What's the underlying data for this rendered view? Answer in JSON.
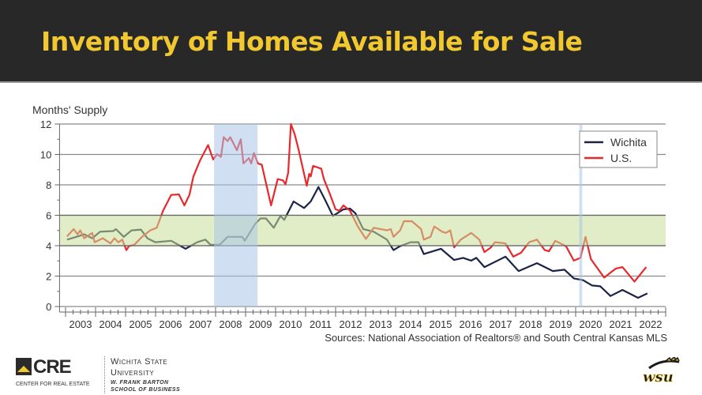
{
  "slide": {
    "title": "Inventory of Homes Available for Sale"
  },
  "chart_data": {
    "type": "line",
    "title": "",
    "ylabel": "Months' Supply",
    "xlabel": "",
    "ylim": [
      0,
      12
    ],
    "xlim": [
      2002.8,
      2023.0
    ],
    "yticks": [
      "0",
      "2",
      "4",
      "6",
      "8",
      "10",
      "12"
    ],
    "xticks": [
      "2003",
      "2004",
      "2005",
      "2006",
      "2007",
      "2008",
      "2009",
      "2010",
      "2011",
      "2012",
      "2013",
      "2014",
      "2015",
      "2016",
      "2017",
      "2018",
      "2019",
      "2020",
      "2021",
      "2022"
    ],
    "grid": "horizontal",
    "legend_position": "top-right",
    "source": "Sources: National Association of Realtors® and South Central Kansas MLS",
    "shaded_band": {
      "from": 4,
      "to": 6,
      "color": "#c6df98"
    },
    "shaded_periods": [
      {
        "from": 2007.95,
        "to": 2009.4,
        "color": "#a9c4e6"
      },
      {
        "from": 2020.12,
        "to": 2020.22,
        "color": "#a9c4e6"
      }
    ],
    "series": [
      {
        "name": "Wichita",
        "color": "#1b2447",
        "points": [
          [
            2003.05,
            4.4
          ],
          [
            2003.36,
            4.58
          ],
          [
            2003.62,
            4.75
          ],
          [
            2003.89,
            4.49
          ],
          [
            2004.15,
            4.92
          ],
          [
            2004.59,
            4.96
          ],
          [
            2004.68,
            5.09
          ],
          [
            2004.94,
            4.58
          ],
          [
            2005.2,
            5.01
          ],
          [
            2005.51,
            5.06
          ],
          [
            2005.73,
            4.49
          ],
          [
            2005.99,
            4.23
          ],
          [
            2006.52,
            4.32
          ],
          [
            2007.0,
            3.8
          ],
          [
            2007.39,
            4.23
          ],
          [
            2007.66,
            4.4
          ],
          [
            2007.83,
            4.06
          ],
          [
            2008.14,
            4.06
          ],
          [
            2008.4,
            4.58
          ],
          [
            2008.89,
            4.58
          ],
          [
            2008.97,
            4.32
          ],
          [
            2009.32,
            5.44
          ],
          [
            2009.5,
            5.79
          ],
          [
            2009.68,
            5.79
          ],
          [
            2009.94,
            5.18
          ],
          [
            2010.16,
            5.96
          ],
          [
            2010.29,
            5.7
          ],
          [
            2010.6,
            6.91
          ],
          [
            2010.95,
            6.48
          ],
          [
            2011.17,
            6.91
          ],
          [
            2011.43,
            7.86
          ],
          [
            2011.61,
            7.17
          ],
          [
            2011.91,
            5.96
          ],
          [
            2012.26,
            6.39
          ],
          [
            2012.48,
            6.44
          ],
          [
            2012.66,
            6.13
          ],
          [
            2012.92,
            5.09
          ],
          [
            2013.27,
            4.92
          ],
          [
            2013.71,
            4.4
          ],
          [
            2013.93,
            3.71
          ],
          [
            2014.15,
            3.97
          ],
          [
            2014.5,
            4.23
          ],
          [
            2014.76,
            4.23
          ],
          [
            2014.94,
            3.45
          ],
          [
            2015.51,
            3.8
          ],
          [
            2015.95,
            3.06
          ],
          [
            2016.25,
            3.2
          ],
          [
            2016.52,
            3.02
          ],
          [
            2016.69,
            3.2
          ],
          [
            2016.96,
            2.59
          ],
          [
            2017.66,
            3.28
          ],
          [
            2018.1,
            2.33
          ],
          [
            2018.71,
            2.85
          ],
          [
            2019.24,
            2.33
          ],
          [
            2019.63,
            2.42
          ],
          [
            2019.94,
            1.85
          ],
          [
            2020.25,
            1.73
          ],
          [
            2020.55,
            1.38
          ],
          [
            2020.82,
            1.33
          ],
          [
            2021.16,
            0.69
          ],
          [
            2021.56,
            1.09
          ],
          [
            2022.08,
            0.57
          ],
          [
            2022.39,
            0.86
          ]
        ]
      },
      {
        "name": "U.S.",
        "color": "#e8282b",
        "points": [
          [
            2003.05,
            4.61
          ],
          [
            2003.27,
            5.09
          ],
          [
            2003.4,
            4.75
          ],
          [
            2003.49,
            5.01
          ],
          [
            2003.62,
            4.49
          ],
          [
            2003.89,
            4.84
          ],
          [
            2003.97,
            4.23
          ],
          [
            2004.24,
            4.49
          ],
          [
            2004.5,
            4.15
          ],
          [
            2004.63,
            4.49
          ],
          [
            2004.76,
            4.23
          ],
          [
            2004.89,
            4.4
          ],
          [
            2005.03,
            3.71
          ],
          [
            2005.11,
            3.97
          ],
          [
            2005.29,
            4.06
          ],
          [
            2005.55,
            4.58
          ],
          [
            2005.82,
            5.01
          ],
          [
            2006.04,
            5.18
          ],
          [
            2006.25,
            6.3
          ],
          [
            2006.52,
            7.34
          ],
          [
            2006.78,
            7.37
          ],
          [
            2006.96,
            6.65
          ],
          [
            2007.13,
            7.34
          ],
          [
            2007.26,
            8.55
          ],
          [
            2007.48,
            9.59
          ],
          [
            2007.75,
            10.62
          ],
          [
            2007.92,
            9.67
          ],
          [
            2008.05,
            10.02
          ],
          [
            2008.18,
            9.84
          ],
          [
            2008.27,
            11.14
          ],
          [
            2008.4,
            10.88
          ],
          [
            2008.49,
            11.14
          ],
          [
            2008.71,
            10.28
          ],
          [
            2008.84,
            11.0
          ],
          [
            2008.93,
            9.41
          ],
          [
            2009.11,
            9.76
          ],
          [
            2009.19,
            9.41
          ],
          [
            2009.28,
            10.1
          ],
          [
            2009.41,
            9.41
          ],
          [
            2009.54,
            9.33
          ],
          [
            2009.85,
            6.65
          ],
          [
            2010.07,
            8.38
          ],
          [
            2010.25,
            8.29
          ],
          [
            2010.33,
            8.03
          ],
          [
            2010.42,
            8.81
          ],
          [
            2010.51,
            12.0
          ],
          [
            2010.64,
            11.31
          ],
          [
            2010.77,
            10.28
          ],
          [
            2011.04,
            7.94
          ],
          [
            2011.12,
            8.72
          ],
          [
            2011.17,
            8.55
          ],
          [
            2011.25,
            9.24
          ],
          [
            2011.52,
            9.07
          ],
          [
            2011.61,
            8.38
          ],
          [
            2011.82,
            7.34
          ],
          [
            2012.0,
            6.39
          ],
          [
            2012.13,
            6.3
          ],
          [
            2012.26,
            6.65
          ],
          [
            2012.48,
            6.3
          ],
          [
            2012.74,
            5.27
          ],
          [
            2013.01,
            4.44
          ],
          [
            2013.27,
            5.18
          ],
          [
            2013.71,
            5.01
          ],
          [
            2013.84,
            5.09
          ],
          [
            2013.93,
            4.58
          ],
          [
            2014.15,
            5.01
          ],
          [
            2014.28,
            5.61
          ],
          [
            2014.54,
            5.61
          ],
          [
            2014.85,
            5.09
          ],
          [
            2014.94,
            4.4
          ],
          [
            2015.16,
            4.58
          ],
          [
            2015.29,
            5.27
          ],
          [
            2015.55,
            4.92
          ],
          [
            2015.68,
            4.84
          ],
          [
            2015.82,
            5.01
          ],
          [
            2015.95,
            3.89
          ],
          [
            2016.17,
            4.4
          ],
          [
            2016.52,
            4.84
          ],
          [
            2016.79,
            4.4
          ],
          [
            2016.96,
            3.58
          ],
          [
            2017.18,
            3.89
          ],
          [
            2017.31,
            4.23
          ],
          [
            2017.66,
            4.15
          ],
          [
            2017.92,
            3.28
          ],
          [
            2018.18,
            3.54
          ],
          [
            2018.45,
            4.23
          ],
          [
            2018.71,
            4.4
          ],
          [
            2018.97,
            3.71
          ],
          [
            2019.11,
            3.63
          ],
          [
            2019.32,
            4.32
          ],
          [
            2019.68,
            3.97
          ],
          [
            2019.94,
            3.02
          ],
          [
            2020.16,
            3.2
          ],
          [
            2020.33,
            4.58
          ],
          [
            2020.51,
            3.11
          ],
          [
            2020.95,
            1.9
          ],
          [
            2021.34,
            2.5
          ],
          [
            2021.56,
            2.59
          ],
          [
            2021.96,
            1.64
          ],
          [
            2022.35,
            2.59
          ]
        ]
      }
    ]
  },
  "footer": {
    "cre_logo_text": "CRE",
    "cre_subtitle": "CENTER FOR REAL ESTATE",
    "university_name_line1": "Wichita State",
    "university_name_line2": "University",
    "school_line1": "W. Frank Barton",
    "school_line2": "School of Business",
    "wsu_logo_text": "WSU"
  }
}
